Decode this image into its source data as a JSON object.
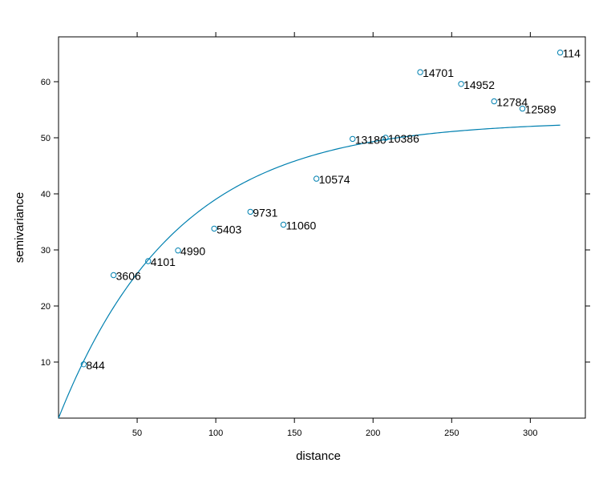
{
  "chart_data": {
    "type": "scatter",
    "title": "",
    "xlabel": "distance",
    "ylabel": "semivariance",
    "xlim": [
      0,
      335
    ],
    "ylim": [
      0,
      68
    ],
    "xticks": [
      50,
      100,
      150,
      200,
      250,
      300
    ],
    "yticks": [
      10,
      20,
      30,
      40,
      50,
      60
    ],
    "grid": false,
    "legend": "none",
    "colors": {
      "points": "#0080b0",
      "fit": "#0080b0",
      "frame": "#000000"
    },
    "points": [
      {
        "x": 16,
        "y": 9.6,
        "label": "844"
      },
      {
        "x": 35,
        "y": 25.5,
        "label": "3606"
      },
      {
        "x": 57,
        "y": 28.0,
        "label": "4101"
      },
      {
        "x": 76,
        "y": 29.9,
        "label": "4990"
      },
      {
        "x": 99,
        "y": 33.8,
        "label": "5403"
      },
      {
        "x": 122,
        "y": 36.8,
        "label": "9731"
      },
      {
        "x": 143,
        "y": 34.5,
        "label": "11060"
      },
      {
        "x": 164,
        "y": 42.7,
        "label": "10574"
      },
      {
        "x": 187,
        "y": 49.8,
        "label": "13180"
      },
      {
        "x": 208,
        "y": 50.0,
        "label": "10386"
      },
      {
        "x": 230,
        "y": 61.7,
        "label": "14701"
      },
      {
        "x": 256,
        "y": 59.6,
        "label": "14952"
      },
      {
        "x": 277,
        "y": 56.5,
        "label": "12784"
      },
      {
        "x": 295,
        "y": 55.2,
        "label": "12589"
      },
      {
        "x": 319,
        "y": 65.2,
        "label": "114"
      }
    ],
    "fit": {
      "model": "exponential",
      "sill": 53,
      "range": 75,
      "x_max": 319
    }
  }
}
